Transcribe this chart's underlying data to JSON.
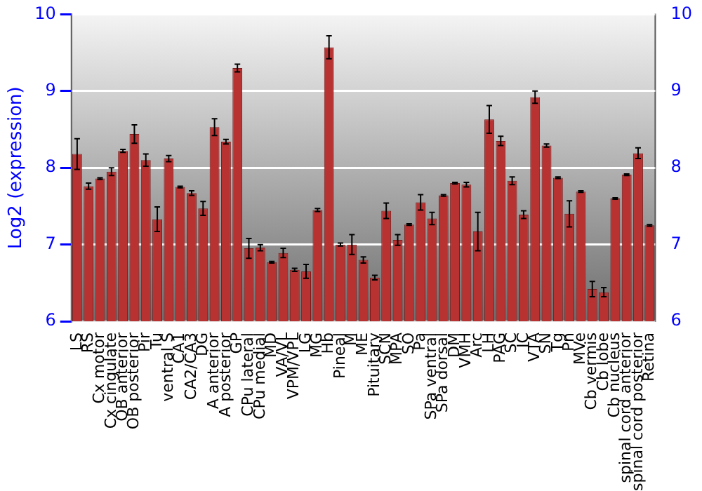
{
  "chart_data": {
    "type": "bar",
    "ylabel": "Log2 (expression)",
    "categories": [
      "LS",
      "RS",
      "Cx motor",
      "Cx cingulate",
      "OB anterior",
      "OB posterior",
      "Pir",
      "Tu",
      "ventral S",
      "CA1",
      "CA2/CA3",
      "DG",
      "A anterior",
      "A posterior",
      "GP",
      "CPu lateral",
      "CPu medial",
      "MD",
      "VA/VL",
      "VPM/VPL",
      "LG",
      "MG",
      "Hb",
      "Pineal",
      "M",
      "ME",
      "Pituitary",
      "SCN",
      "MPA",
      "SO",
      "Pa",
      "SPa ventral",
      "SPa dorsal",
      "DM",
      "VMH",
      "Arc",
      "LH",
      "PAG",
      "SC",
      "IC",
      "VTA",
      "SN",
      "Tg",
      "Pn",
      "MVe",
      "Cb vermis",
      "Cb lobe",
      "Cb nucleus",
      "spinal cord anterior",
      "spinal cord posterior",
      "Retina"
    ],
    "values": [
      8.18,
      7.76,
      7.86,
      7.95,
      8.22,
      8.44,
      8.1,
      7.33,
      8.12,
      7.75,
      7.67,
      7.47,
      8.53,
      8.34,
      9.3,
      6.95,
      6.96,
      6.77,
      6.89,
      6.67,
      6.65,
      7.45,
      9.57,
      7.0,
      7.0,
      6.8,
      6.57,
      7.44,
      7.06,
      7.26,
      7.55,
      7.34,
      7.64,
      7.8,
      7.78,
      7.17,
      8.63,
      8.35,
      7.83,
      7.39,
      8.92,
      8.29,
      7.87,
      7.4,
      7.69,
      6.42,
      6.38,
      7.6,
      7.91,
      8.19,
      7.25
    ],
    "errors": [
      0.2,
      0.04,
      0.01,
      0.05,
      0.02,
      0.12,
      0.08,
      0.16,
      0.04,
      0.01,
      0.03,
      0.09,
      0.11,
      0.03,
      0.05,
      0.13,
      0.04,
      0.01,
      0.06,
      0.02,
      0.09,
      0.02,
      0.15,
      0.02,
      0.13,
      0.04,
      0.03,
      0.1,
      0.07,
      0.01,
      0.1,
      0.08,
      0.01,
      0.01,
      0.03,
      0.25,
      0.18,
      0.06,
      0.05,
      0.05,
      0.08,
      0.02,
      0.01,
      0.17,
      0.01,
      0.1,
      0.06,
      0.01,
      0.01,
      0.07,
      0.01
    ],
    "color": "#b83232",
    "ylim": [
      6,
      10
    ],
    "yticks": [
      6,
      7,
      8,
      9,
      10
    ],
    "y2lim": [
      6,
      10
    ],
    "y2ticks": [
      6,
      7,
      8,
      9,
      10
    ],
    "grid": "y",
    "legend": false
  }
}
